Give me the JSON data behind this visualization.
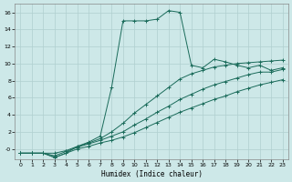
{
  "xlabel": "Humidex (Indice chaleur)",
  "bg_color": "#cde8e8",
  "grid_color": "#b0cfcf",
  "line_color": "#1a6b5a",
  "xlim": [
    -0.5,
    23.5
  ],
  "ylim": [
    -1.2,
    17
  ],
  "xticks": [
    0,
    1,
    2,
    3,
    4,
    5,
    6,
    7,
    8,
    9,
    10,
    11,
    12,
    13,
    14,
    15,
    16,
    17,
    18,
    19,
    20,
    21,
    22,
    23
  ],
  "yticks": [
    0,
    2,
    4,
    6,
    8,
    10,
    12,
    14,
    16
  ],
  "series": [
    {
      "x": [
        0,
        1,
        2,
        3,
        4,
        5,
        6,
        7,
        8,
        9,
        10,
        11,
        12,
        13,
        14,
        15,
        16,
        17,
        18,
        19,
        20,
        21,
        22,
        23
      ],
      "y": [
        -0.5,
        -0.5,
        -0.5,
        -1.0,
        -0.5,
        0.3,
        0.8,
        1.5,
        7.2,
        15.0,
        15.0,
        15.0,
        15.2,
        16.2,
        16.0,
        9.8,
        9.5,
        10.5,
        10.2,
        9.8,
        9.5,
        9.8,
        9.2,
        9.5
      ]
    },
    {
      "x": [
        0,
        1,
        2,
        3,
        4,
        5,
        6,
        7,
        8,
        9,
        10,
        11,
        12,
        13,
        14,
        15,
        16,
        17,
        18,
        19,
        20,
        21,
        22,
        23
      ],
      "y": [
        -0.5,
        -0.5,
        -0.5,
        -0.5,
        -0.2,
        0.3,
        0.7,
        1.2,
        2.0,
        3.0,
        4.2,
        5.2,
        6.2,
        7.2,
        8.2,
        8.8,
        9.2,
        9.6,
        9.8,
        10.0,
        10.1,
        10.2,
        10.3,
        10.4
      ]
    },
    {
      "x": [
        0,
        1,
        2,
        3,
        4,
        5,
        6,
        7,
        8,
        9,
        10,
        11,
        12,
        13,
        14,
        15,
        16,
        17,
        18,
        19,
        20,
        21,
        22,
        23
      ],
      "y": [
        -0.5,
        -0.5,
        -0.5,
        -0.8,
        -0.3,
        0.2,
        0.6,
        1.0,
        1.5,
        2.0,
        2.8,
        3.5,
        4.3,
        5.0,
        5.8,
        6.4,
        7.0,
        7.5,
        7.9,
        8.3,
        8.7,
        9.0,
        9.0,
        9.3
      ]
    },
    {
      "x": [
        0,
        1,
        2,
        3,
        4,
        5,
        6,
        7,
        8,
        9,
        10,
        11,
        12,
        13,
        14,
        15,
        16,
        17,
        18,
        19,
        20,
        21,
        22,
        23
      ],
      "y": [
        -0.5,
        -0.5,
        -0.5,
        -1.0,
        -0.5,
        0.0,
        0.3,
        0.7,
        1.0,
        1.4,
        1.9,
        2.5,
        3.1,
        3.7,
        4.3,
        4.8,
        5.3,
        5.8,
        6.2,
        6.7,
        7.1,
        7.5,
        7.8,
        8.1
      ]
    }
  ]
}
